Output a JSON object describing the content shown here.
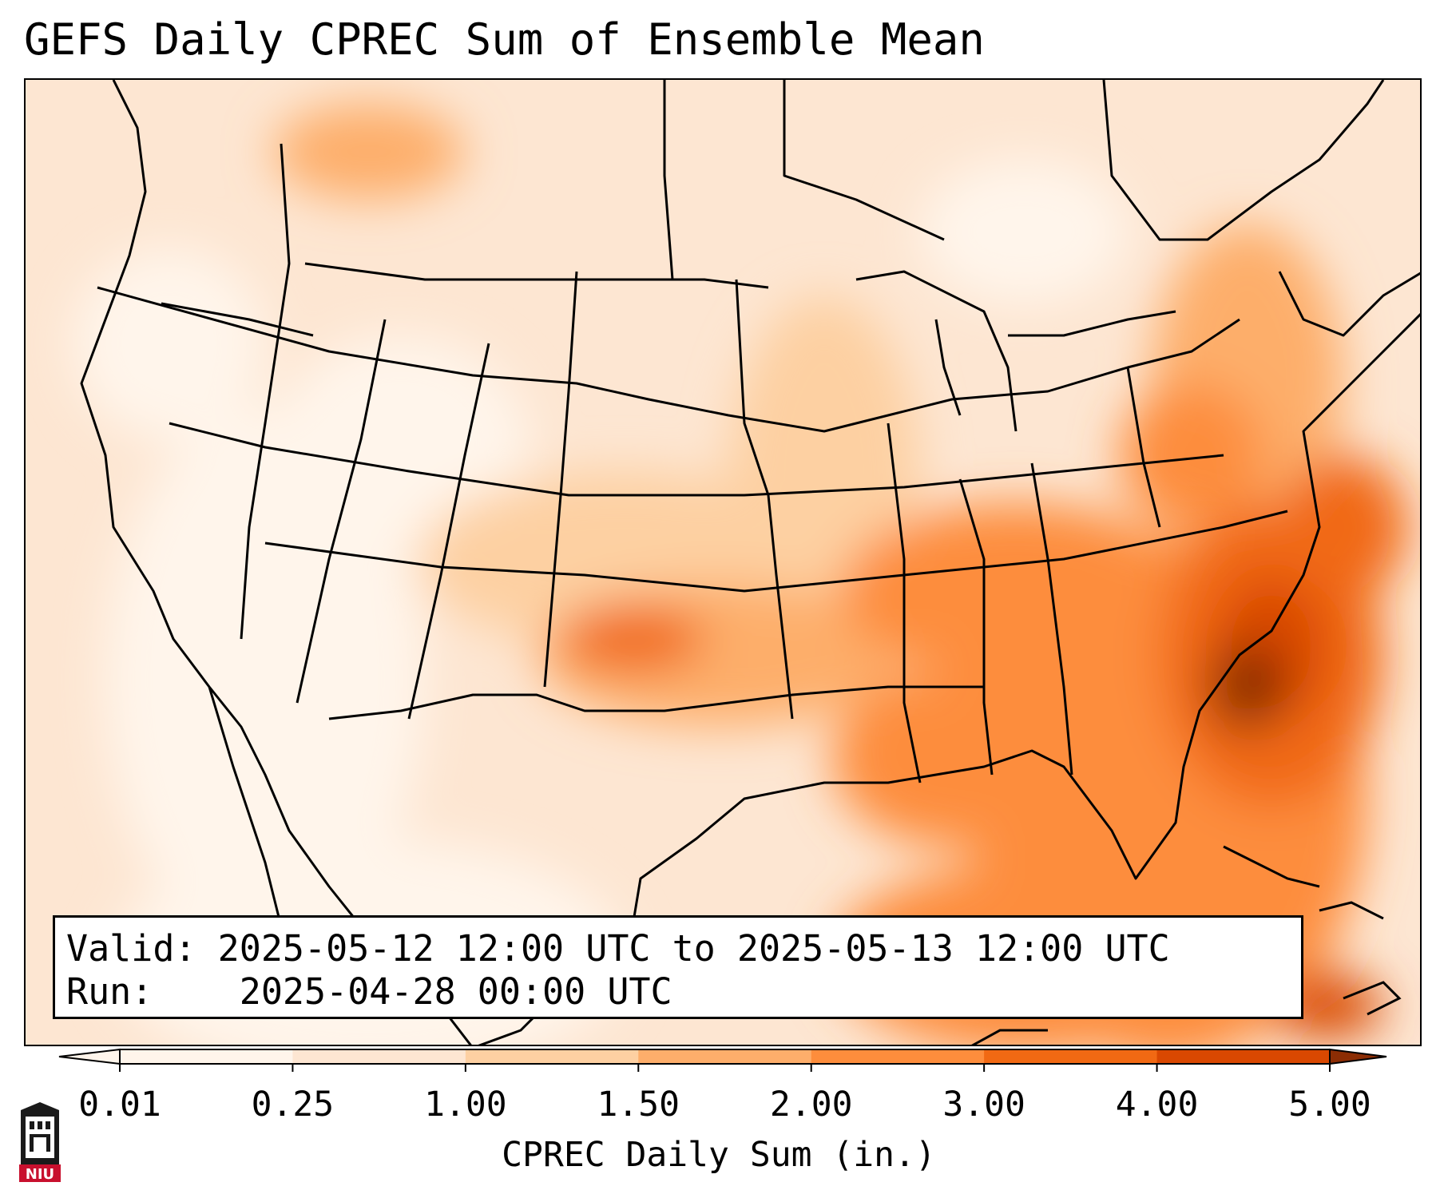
{
  "title": "GEFS Daily CPREC Sum of Ensemble Mean",
  "info": {
    "valid_label": "Valid:",
    "valid_value": "2025-05-12 12:00 UTC to 2025-05-13 12:00 UTC",
    "run_label": "Run:",
    "run_value": "2025-04-28 00:00 UTC"
  },
  "colorbar": {
    "label": "CPREC Daily Sum (in.)",
    "ticks": [
      "0.01",
      "0.25",
      "1.00",
      "1.50",
      "2.00",
      "3.00",
      "4.00",
      "5.00"
    ],
    "colors": [
      "#fff5eb",
      "#fde6d2",
      "#fdd0a2",
      "#fdae6b",
      "#fd8d3c",
      "#f16913",
      "#d94801",
      "#8c2d04"
    ]
  },
  "logo": {
    "text": "NIU",
    "icon": "niu-tower-logo",
    "color": "#c8102e"
  }
}
